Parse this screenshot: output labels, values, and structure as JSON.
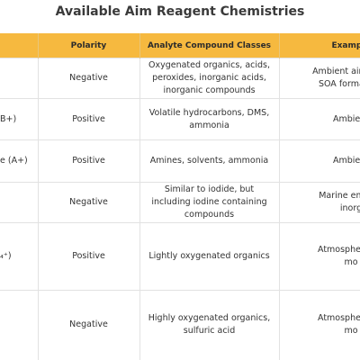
{
  "header": {
    "title": "Available Aim Reagent Chemistries"
  },
  "table": {
    "headers": [
      "Polarity",
      "Analyte Compound Classes",
      "Example"
    ],
    "rows": [
      {
        "polarity": "Negative",
        "analyte": "Oxygenated organics, acids, peroxides, inorganic acids, inorganic compounds",
        "example": [
          "Ambient air monit",
          "SOA formation,"
        ]
      },
      {
        "reagent": "B+)",
        "polarity": "Positive",
        "analyte": "Volatile hydrocarbons, DMS, ammonia",
        "example": [
          "Ambient"
        ]
      },
      {
        "reagent": "e (A+)",
        "polarity": "Positive",
        "analyte": "Amines, solvents, ammonia",
        "example": [
          "Ambient"
        ]
      },
      {
        "polarity": "Negative",
        "analyte": "Similar to iodide, but including iodine containing compounds",
        "example": [
          "Marine emissio",
          "inorg"
        ]
      },
      {
        "reagent": "₄⁺)",
        "polarity": "Positive",
        "analyte": "Lightly oxygenated organics",
        "example": [
          "Atmospheric ch",
          "mo"
        ]
      },
      {
        "polarity": "Negative",
        "analyte": "Highly oxygenated organics, sulfuric acid",
        "example": [
          "Atmospheric ch",
          "mo"
        ]
      }
    ]
  }
}
